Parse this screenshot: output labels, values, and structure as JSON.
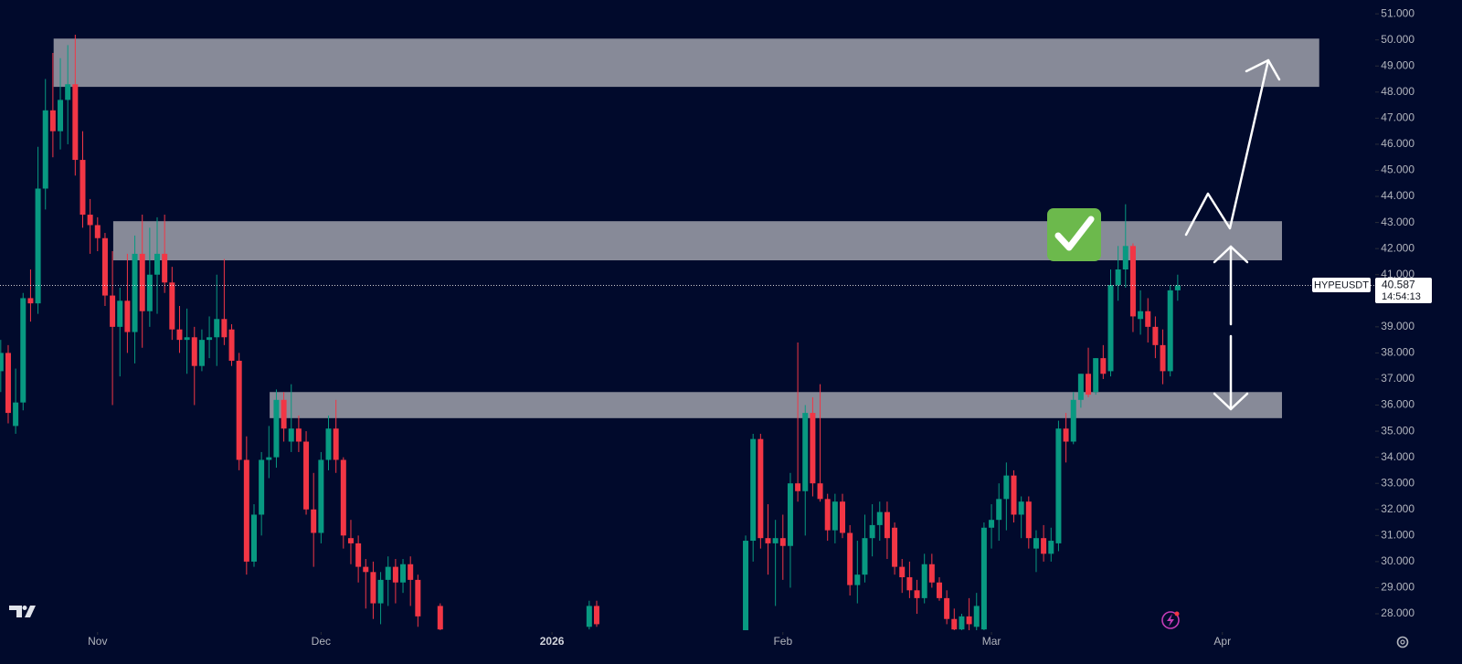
{
  "chart_data": {
    "type": "candlestick",
    "symbol": "HYPEUSDT",
    "last_price": 40.587,
    "last_price_label": "40.587",
    "countdown": "14:54:13",
    "up_color": "#089981",
    "down_color": "#f23645",
    "zone_color": "#8b8e9c",
    "xlim": [
      -13.1,
      170.9
    ],
    "ylim": [
      27.37,
      51.53
    ],
    "xticks": [
      {
        "value": 0,
        "label": "Nov"
      },
      {
        "value": 30,
        "label": "Dec"
      },
      {
        "value": 61,
        "label": "2026"
      },
      {
        "value": 92,
        "label": "Feb"
      },
      {
        "value": 120,
        "label": "Mar"
      },
      {
        "value": 151,
        "label": "Apr"
      }
    ],
    "yticks": [
      {
        "value": 28,
        "label": "28.000"
      },
      {
        "value": 29,
        "label": "29.000"
      },
      {
        "value": 30,
        "label": "30.000"
      },
      {
        "value": 31,
        "label": "31.000"
      },
      {
        "value": 32,
        "label": "32.000"
      },
      {
        "value": 33,
        "label": "33.000"
      },
      {
        "value": 34,
        "label": "34.000"
      },
      {
        "value": 35,
        "label": "35.000"
      },
      {
        "value": 36,
        "label": "36.000"
      },
      {
        "value": 37,
        "label": "37.000"
      },
      {
        "value": 38,
        "label": "38.000"
      },
      {
        "value": 39,
        "label": "39.000"
      },
      {
        "value": 41,
        "label": "41.000"
      },
      {
        "value": 42,
        "label": "42.000"
      },
      {
        "value": 43,
        "label": "43.000"
      },
      {
        "value": 44,
        "label": "44.000"
      },
      {
        "value": 45,
        "label": "45.000"
      },
      {
        "value": 46,
        "label": "46.000"
      },
      {
        "value": 47,
        "label": "47.000"
      },
      {
        "value": 48,
        "label": "48.000"
      },
      {
        "value": 49,
        "label": "49.000"
      },
      {
        "value": 50,
        "label": "50.000"
      },
      {
        "value": 51,
        "label": "51.000"
      }
    ],
    "zones": [
      {
        "x0": -5.9,
        "x1": 164,
        "low": 48.2,
        "high": 50.05
      },
      {
        "x0": 2.1,
        "x1": 159,
        "low": 41.55,
        "high": 43.05
      },
      {
        "x0": 23.1,
        "x1": 159,
        "low": 35.5,
        "high": 36.5
      }
    ],
    "x": [
      -13,
      -12,
      -11,
      -10,
      -9,
      -8,
      -7,
      -6,
      -5,
      -4,
      -3,
      -2,
      -1,
      0,
      1,
      2,
      3,
      4,
      5,
      6,
      7,
      8,
      9,
      10,
      11,
      12,
      13,
      14,
      15,
      16,
      17,
      18,
      19,
      20,
      21,
      22,
      23,
      24,
      25,
      26,
      27,
      28,
      29,
      30,
      31,
      32,
      33,
      34,
      35,
      36,
      37,
      38,
      39,
      40,
      41,
      42,
      43,
      46,
      66,
      67,
      87,
      88,
      89,
      90,
      91,
      92,
      93,
      94,
      95,
      96,
      97,
      98,
      99,
      100,
      101,
      102,
      103,
      104,
      105,
      106,
      107,
      108,
      109,
      110,
      111,
      112,
      113,
      114,
      115,
      116,
      117,
      118,
      119,
      120,
      121,
      122,
      123,
      124,
      125,
      126,
      127,
      128,
      129,
      130,
      131,
      132,
      133,
      134,
      135,
      136,
      137,
      138,
      139,
      140,
      141,
      142,
      143,
      144,
      145
    ],
    "open": [
      37.3,
      38.0,
      35.2,
      36.1,
      40.1,
      39.9,
      44.3,
      47.3,
      46.5,
      47.7,
      48.3,
      45.4,
      43.3,
      42.9,
      42.4,
      40.2,
      39.0,
      40.0,
      38.8,
      41.8,
      39.6,
      41.0,
      41.8,
      40.7,
      38.9,
      38.5,
      38.6,
      37.5,
      38.5,
      38.6,
      39.3,
      38.9,
      37.7,
      33.9,
      30.0,
      31.8,
      33.9,
      34.0,
      36.2,
      34.6,
      35.1,
      34.6,
      32.0,
      31.1,
      33.9,
      35.1,
      33.9,
      30.9,
      30.7,
      29.8,
      29.6,
      28.4,
      29.3,
      29.8,
      29.2,
      29.9,
      29.3,
      28.3,
      27.5,
      28.3,
      27.3,
      30.8,
      34.7,
      30.9,
      30.7,
      30.9,
      30.6,
      33.0,
      32.7,
      35.7,
      33.0,
      32.4,
      31.2,
      32.3,
      31.1,
      29.1,
      29.5,
      30.9,
      31.4,
      31.9,
      31.3,
      29.8,
      29.4,
      28.9,
      28.6,
      29.9,
      29.2,
      28.6,
      27.8,
      27.4,
      27.9,
      27.5,
      27.4,
      31.3,
      31.6,
      32.4,
      33.3,
      31.8,
      32.3,
      30.5,
      30.9,
      30.3,
      30.7,
      35.1,
      34.6,
      36.2,
      37.2,
      36.5,
      37.8,
      37.3,
      40.6,
      41.2,
      42.1,
      39.3,
      39.6,
      39.0,
      38.3,
      37.3,
      40.4
    ],
    "high": [
      38.5,
      38.3,
      37.4,
      40.3,
      41.2,
      45.9,
      48.5,
      49.5,
      49.3,
      49.8,
      50.2,
      46.5,
      43.9,
      43.2,
      42.6,
      41.9,
      40.5,
      41.8,
      42.5,
      43.3,
      42.8,
      43.2,
      43.3,
      41.3,
      39.8,
      39.7,
      39.0,
      38.9,
      39.4,
      41.0,
      41.6,
      39.1,
      38.0,
      34.8,
      32.2,
      34.2,
      35.2,
      36.6,
      36.5,
      36.8,
      35.6,
      35.0,
      33.4,
      34.2,
      35.6,
      36.2,
      34.0,
      31.6,
      31.0,
      30.1,
      30.0,
      29.6,
      30.2,
      30.1,
      30.1,
      30.2,
      29.5,
      28.4,
      28.5,
      28.5,
      31.0,
      34.9,
      34.9,
      32.2,
      31.6,
      31.8,
      33.4,
      38.4,
      36.0,
      36.3,
      36.8,
      32.6,
      32.6,
      32.6,
      31.4,
      30.8,
      31.8,
      32.2,
      32.3,
      32.3,
      31.5,
      30.1,
      30.0,
      29.3,
      30.3,
      30.3,
      29.4,
      28.9,
      28.2,
      28.0,
      28.6,
      28.8,
      31.5,
      32.2,
      33.0,
      33.8,
      33.5,
      32.5,
      32.5,
      31.2,
      31.4,
      31.3,
      35.4,
      35.7,
      36.5,
      37.2,
      38.2,
      37.8,
      38.3,
      41.2,
      42.1,
      43.7,
      42.2,
      40.4,
      40.1,
      39.4,
      38.9,
      40.6,
      41.0
    ],
    "low": [
      36.5,
      35.3,
      34.9,
      35.8,
      39.2,
      39.5,
      43.5,
      45.5,
      45.8,
      46.0,
      44.8,
      42.8,
      41.8,
      41.9,
      39.8,
      36.0,
      37.1,
      38.0,
      37.6,
      38.2,
      39.0,
      39.5,
      40.3,
      38.5,
      38.0,
      37.2,
      36.0,
      37.3,
      37.8,
      37.5,
      38.3,
      37.5,
      33.5,
      29.5,
      29.8,
      31.0,
      33.2,
      33.6,
      34.6,
      34.2,
      34.2,
      31.8,
      29.8,
      30.7,
      33.5,
      33.4,
      30.5,
      29.9,
      29.2,
      28.2,
      27.8,
      27.6,
      28.3,
      28.4,
      28.8,
      28.3,
      27.5,
      27.3,
      27.4,
      27.5,
      27.3,
      30.0,
      30.5,
      29.5,
      28.3,
      29.3,
      29.0,
      32.3,
      31.0,
      32.5,
      32.3,
      30.8,
      30.7,
      30.9,
      28.7,
      28.4,
      29.2,
      30.2,
      30.8,
      30.1,
      29.5,
      28.8,
      28.6,
      28.0,
      28.4,
      29.0,
      28.5,
      27.6,
      27.2,
      27.2,
      27.3,
      27.3,
      27.3,
      30.5,
      30.8,
      31.2,
      31.5,
      30.9,
      30.5,
      29.6,
      30.0,
      30.0,
      30.4,
      33.8,
      34.5,
      35.9,
      36.3,
      36.4,
      37.0,
      37.1,
      40.0,
      40.5,
      38.8,
      38.7,
      38.4,
      37.8,
      36.8,
      37.1,
      40.0
    ],
    "close": [
      38.0,
      35.7,
      36.1,
      40.1,
      39.9,
      44.3,
      47.3,
      46.5,
      47.7,
      48.3,
      45.4,
      43.3,
      42.9,
      42.4,
      40.2,
      39.0,
      40.0,
      38.8,
      41.8,
      39.6,
      41.0,
      41.8,
      40.7,
      38.9,
      38.5,
      38.6,
      37.5,
      38.5,
      38.6,
      39.3,
      38.6,
      37.7,
      33.9,
      30.0,
      31.8,
      33.9,
      34.0,
      36.2,
      35.1,
      35.1,
      34.6,
      32.0,
      31.1,
      33.9,
      35.1,
      33.9,
      31.0,
      30.7,
      29.8,
      29.6,
      28.4,
      29.3,
      29.8,
      29.2,
      29.9,
      29.3,
      27.9,
      27.4,
      28.3,
      27.6,
      30.8,
      34.7,
      30.9,
      30.7,
      30.9,
      30.6,
      33.0,
      32.7,
      35.7,
      33.0,
      32.4,
      31.2,
      32.3,
      31.1,
      29.1,
      29.5,
      30.9,
      31.4,
      31.9,
      30.9,
      29.8,
      29.4,
      28.9,
      28.6,
      29.9,
      29.2,
      28.6,
      27.8,
      27.4,
      27.9,
      27.6,
      28.3,
      31.3,
      31.6,
      32.4,
      33.3,
      31.8,
      32.3,
      30.9,
      30.9,
      30.3,
      30.8,
      35.1,
      34.6,
      36.2,
      37.2,
      36.4,
      37.8,
      37.2,
      40.6,
      41.2,
      42.1,
      39.4,
      39.6,
      39.0,
      38.3,
      37.3,
      40.4,
      40.587
    ]
  }
}
